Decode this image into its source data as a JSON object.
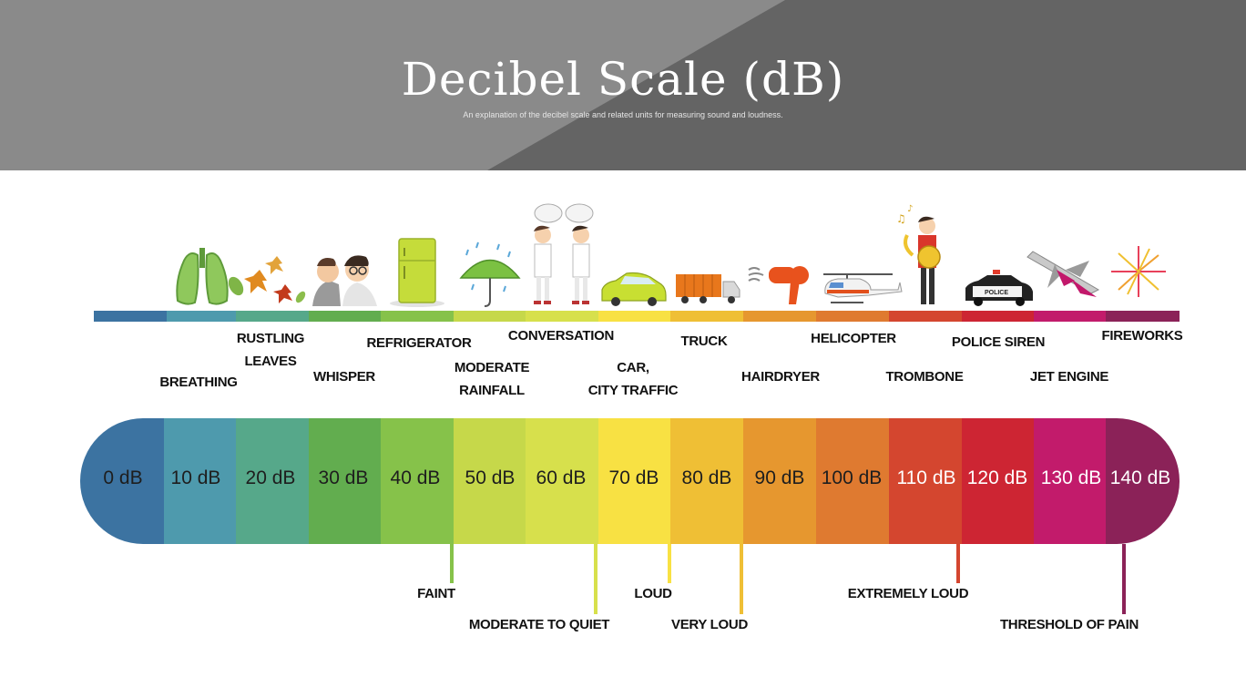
{
  "header": {
    "title": "Decibel Scale (dB)",
    "subtitle": "An explanation of the decibel scale and related units for measuring sound and loudness."
  },
  "scale": [
    {
      "label": "0 dB",
      "color": "#3c73a1"
    },
    {
      "label": "10 dB",
      "color": "#4e9aad"
    },
    {
      "label": "20 dB",
      "color": "#56a88a"
    },
    {
      "label": "30 dB",
      "color": "#62ad4f"
    },
    {
      "label": "40 dB",
      "color": "#86c24a"
    },
    {
      "label": "50 dB",
      "color": "#c6d84a"
    },
    {
      "label": "60 dB",
      "color": "#d7e04c"
    },
    {
      "label": "70 dB",
      "color": "#f8e143"
    },
    {
      "label": "80 dB",
      "color": "#efbf35"
    },
    {
      "label": "90 dB",
      "color": "#e6972f"
    },
    {
      "label": "100 dB",
      "color": "#df7a30"
    },
    {
      "label": "110 dB",
      "color": "#d4462f"
    },
    {
      "label": "120 dB",
      "color": "#cd2533"
    },
    {
      "label": "130 dB",
      "color": "#c21b6b"
    },
    {
      "label": "140 dB",
      "color": "#8b2258"
    }
  ],
  "sources": [
    {
      "label": "BREATHING",
      "icon": "lungs-icon"
    },
    {
      "label": "RUSTLING\nLEAVES",
      "icon": "leaves-icon"
    },
    {
      "label": "WHISPER",
      "icon": "whisper-icon"
    },
    {
      "label": "REFRIGERATOR",
      "icon": "refrigerator-icon"
    },
    {
      "label": "MODERATE\nRAINFALL",
      "icon": "umbrella-icon"
    },
    {
      "label": "CONVERSATION",
      "icon": "conversation-icon"
    },
    {
      "label": "CAR,\nCITY TRAFFIC",
      "icon": "car-icon"
    },
    {
      "label": "TRUCK",
      "icon": "truck-icon"
    },
    {
      "label": "HAIRDRYER",
      "icon": "hairdryer-icon"
    },
    {
      "label": "HELICOPTER",
      "icon": "helicopter-icon"
    },
    {
      "label": "TROMBONE",
      "icon": "trombone-icon"
    },
    {
      "label": "POLICE SIREN",
      "icon": "police-car-icon"
    },
    {
      "label": "JET ENGINE",
      "icon": "jet-icon"
    },
    {
      "label": "FIREWORKS",
      "icon": "fireworks-icon"
    }
  ],
  "police_text": "POLICE",
  "levels": [
    {
      "label": "FAINT",
      "color": "#86c24a"
    },
    {
      "label": "MODERATE TO QUIET",
      "color": "#d7e04c"
    },
    {
      "label": "LOUD",
      "color": "#f8e143"
    },
    {
      "label": "VERY LOUD",
      "color": "#efbf35"
    },
    {
      "label": "EXTREMELY LOUD",
      "color": "#d4462f"
    },
    {
      "label": "THRESHOLD OF PAIN",
      "color": "#8b2258"
    }
  ]
}
